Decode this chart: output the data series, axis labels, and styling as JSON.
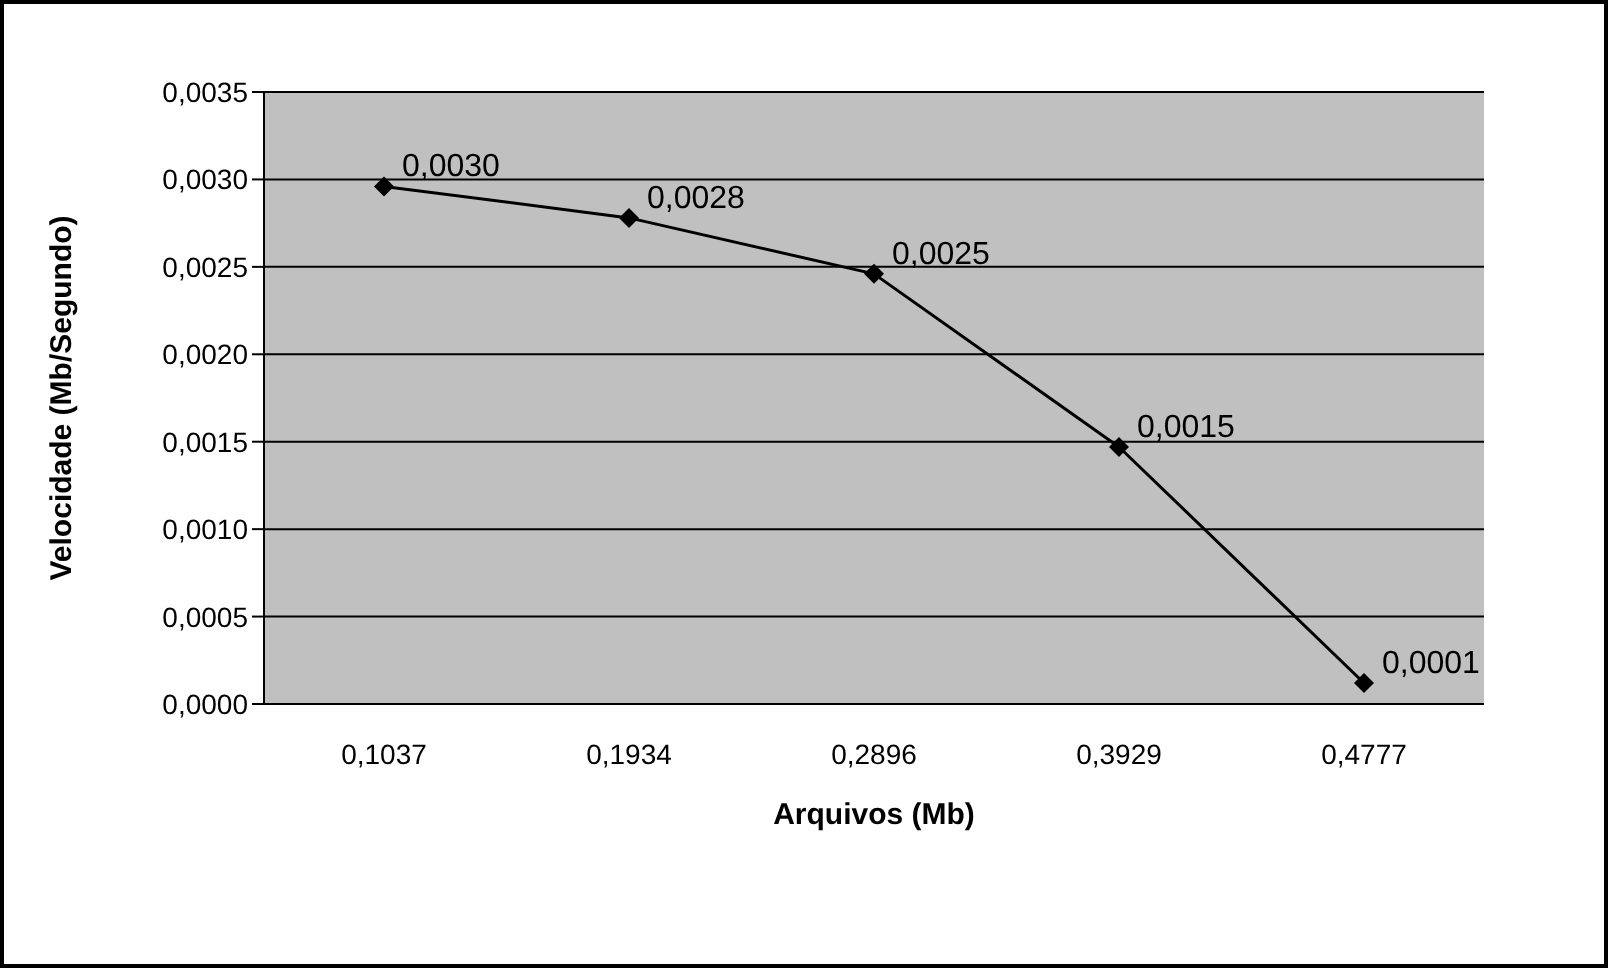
{
  "chart_data": {
    "type": "line",
    "xlabel": "Arquivos (Mb)",
    "ylabel": "Velocidade (Mb/Segundo)",
    "categories": [
      "0,1037",
      "0,1934",
      "0,2896",
      "0,3929",
      "0,4777"
    ],
    "series": [
      {
        "color": "#000000",
        "values": [
          0.00296,
          0.00278,
          0.00246,
          0.00147,
          0.00012
        ],
        "value_labels": [
          "0,0030",
          "0,0028",
          "0,0025",
          "0,0015",
          "0,0001"
        ]
      }
    ],
    "ylim": [
      0,
      0.0035
    ],
    "yticks": [
      {
        "value": 0,
        "label": "0,0000"
      },
      {
        "value": 0.0005,
        "label": "0,0005"
      },
      {
        "value": 0.001,
        "label": "0,0010"
      },
      {
        "value": 0.0015,
        "label": "0,0015"
      },
      {
        "value": 0.002,
        "label": "0,0020"
      },
      {
        "value": 0.0025,
        "label": "0,0025"
      },
      {
        "value": 0.003,
        "label": "0,0030"
      },
      {
        "value": 0.0035,
        "label": "0,0035"
      }
    ],
    "grid": "y",
    "marker": "diamond",
    "line_style": "solid"
  }
}
